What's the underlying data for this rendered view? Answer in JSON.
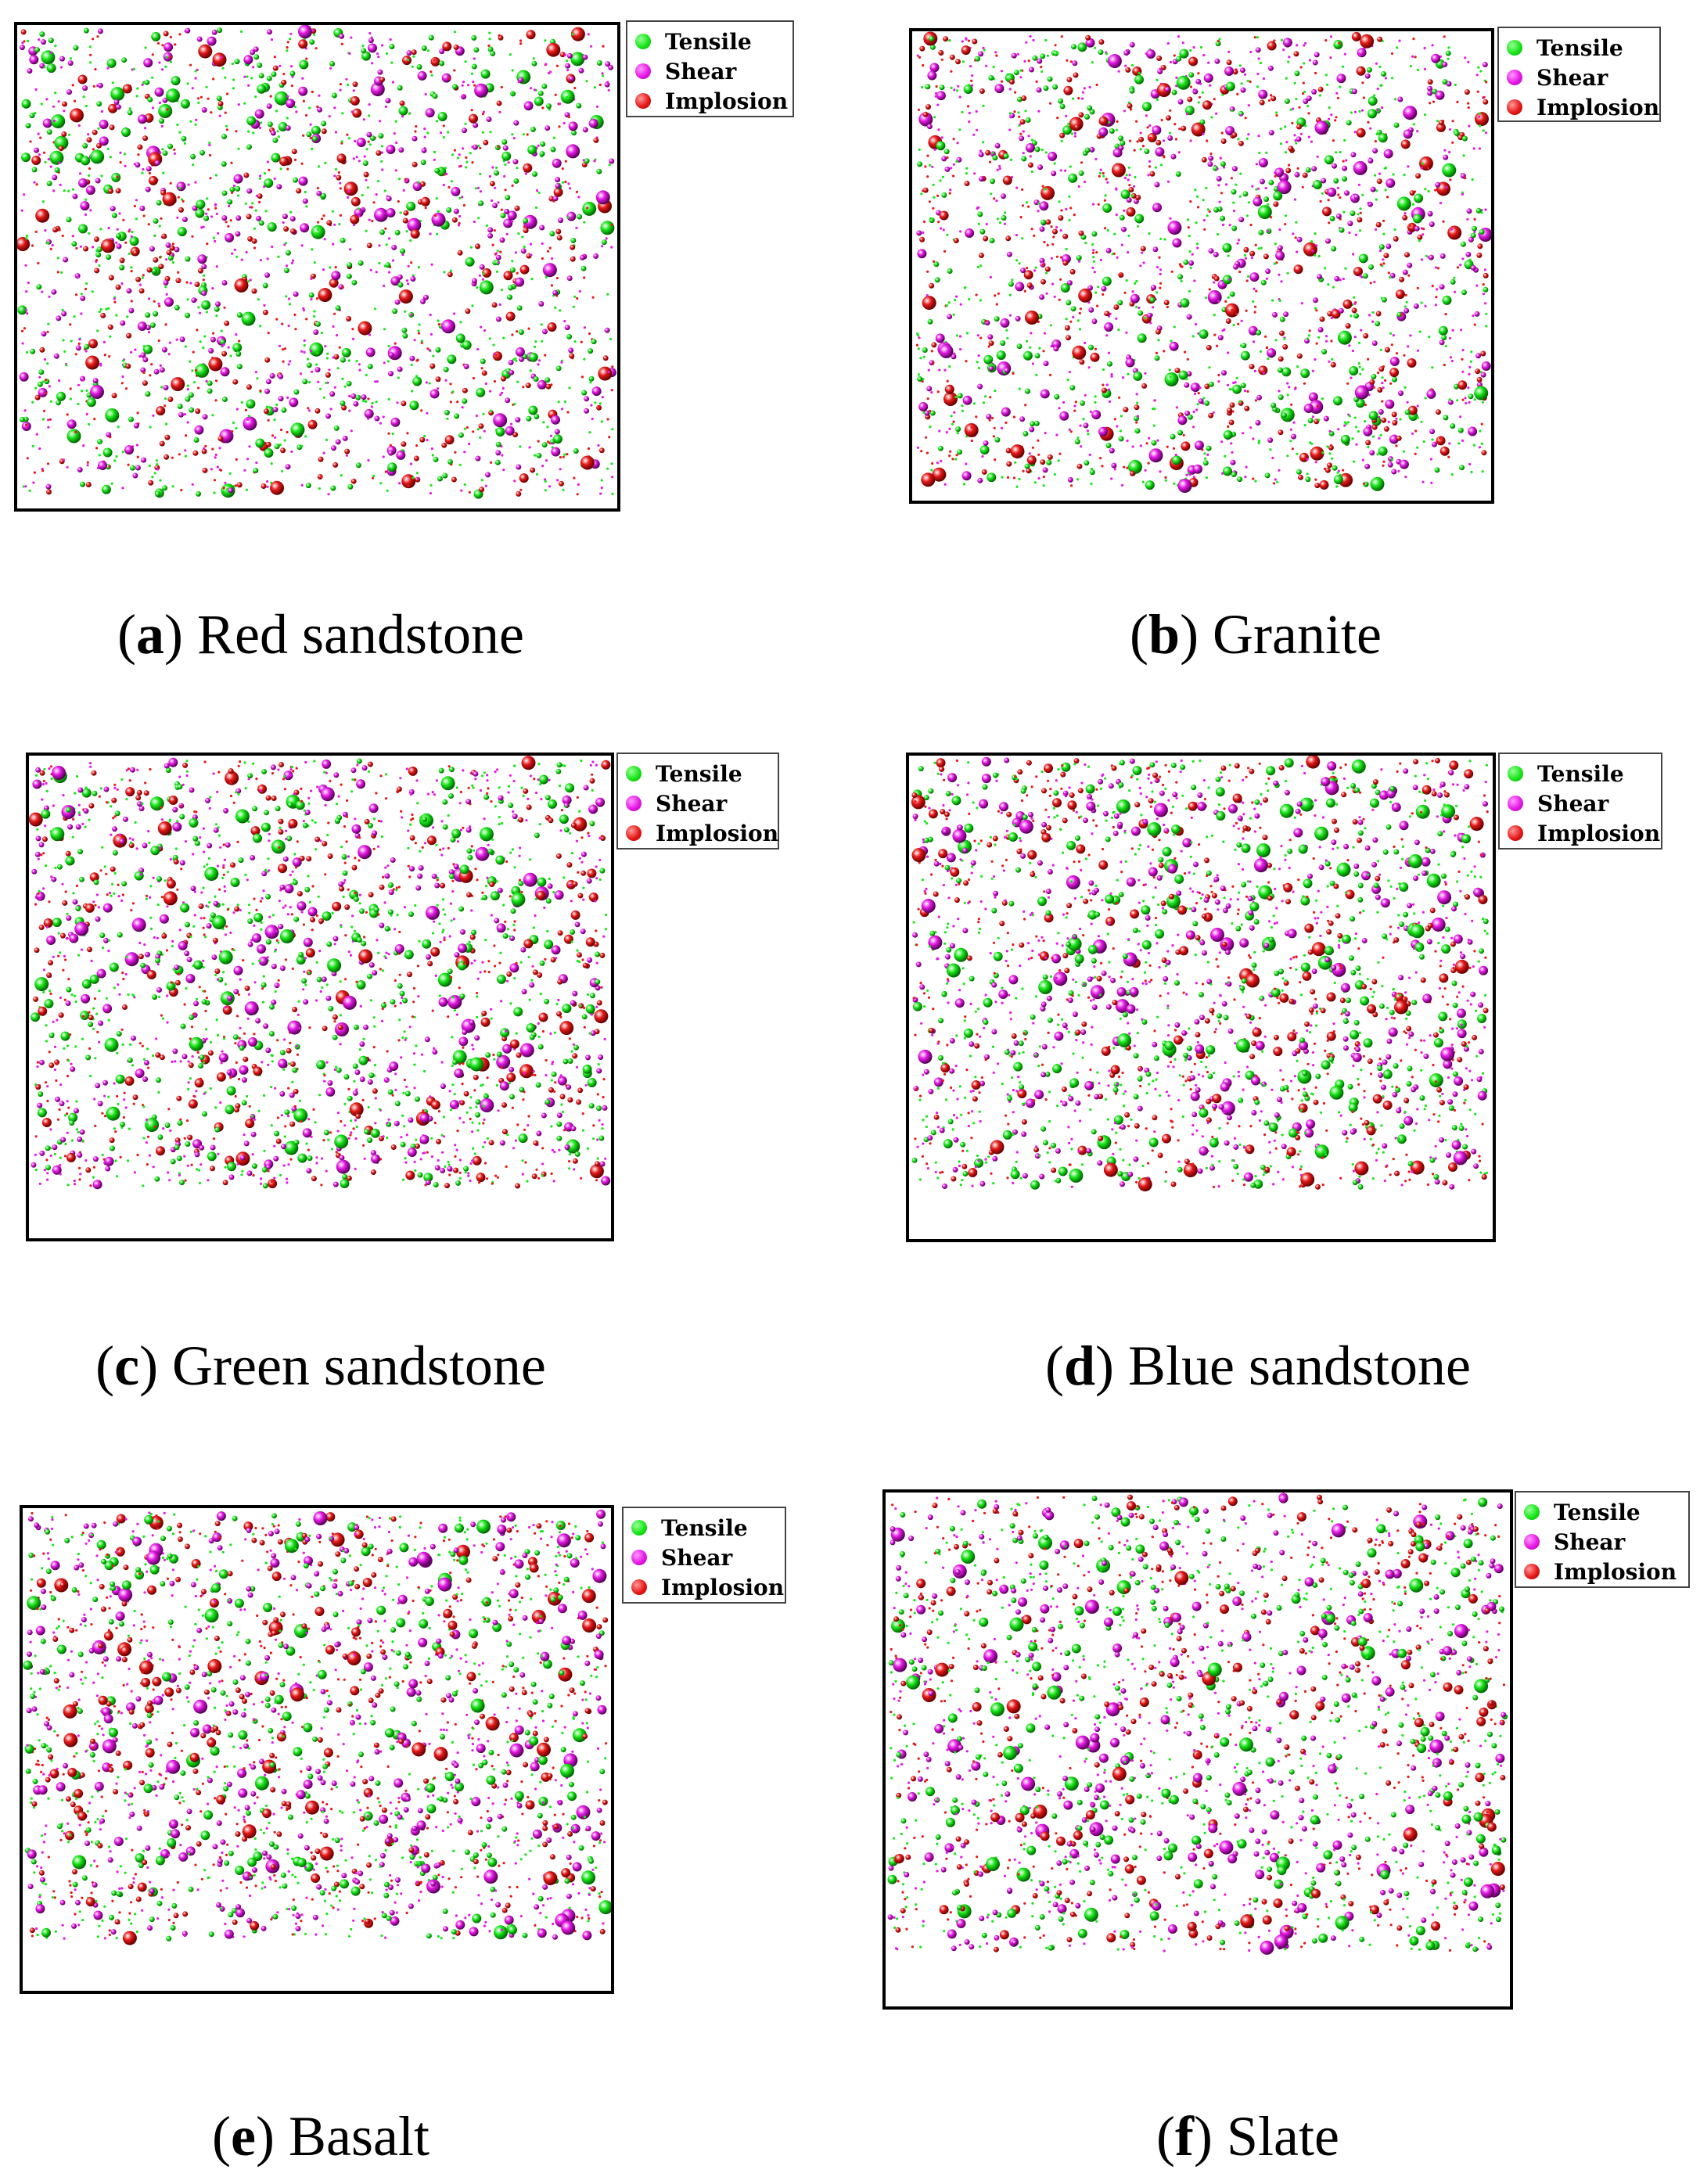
{
  "legend": {
    "tensile": {
      "label": "Tensile",
      "color": "#19e619"
    },
    "shear": {
      "label": "Shear",
      "color": "#e619e6"
    },
    "implosion": {
      "label": "Implosion",
      "color": "#e61919"
    }
  },
  "panels": [
    {
      "id": "a",
      "letter": "a",
      "title": "Red sandstone"
    },
    {
      "id": "b",
      "letter": "b",
      "title": "Granite"
    },
    {
      "id": "c",
      "letter": "c",
      "title": "Green sandstone"
    },
    {
      "id": "d",
      "letter": "d",
      "title": "Blue sandstone"
    },
    {
      "id": "e",
      "letter": "e",
      "title": "Basalt"
    },
    {
      "id": "f",
      "letter": "f",
      "title": "Slate"
    }
  ]
}
